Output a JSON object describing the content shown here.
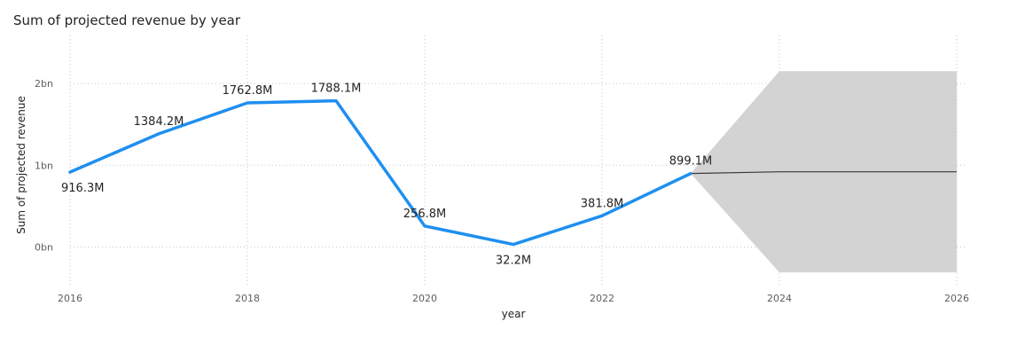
{
  "chart_data": {
    "type": "line",
    "title": "Sum of projected revenue by year",
    "xlabel": "year",
    "ylabel": "Sum of projected revenue",
    "x": [
      2016,
      2017,
      2018,
      2019,
      2020,
      2021,
      2022,
      2023
    ],
    "series": [
      {
        "values": [
          916.3,
          1384.2,
          1762.8,
          1788.1,
          256.8,
          32.2,
          381.8,
          899.1
        ],
        "data_labels": [
          "916.3M",
          "1384.2M",
          "1762.8M",
          "1788.1M",
          "256.8M",
          "32.2M",
          "381.8M",
          "899.1M"
        ],
        "color": "#1F8FEF"
      }
    ],
    "forecast": {
      "x": [
        2023,
        2024,
        2026
      ],
      "values": [
        899.1,
        920,
        920
      ],
      "upper": [
        899.1,
        2150,
        2150
      ],
      "lower": [
        899.1,
        -310,
        -310
      ],
      "line_color": "#3b3a39",
      "band_color": "#d3d3d3"
    },
    "x_ticks": [
      "2016",
      "2018",
      "2020",
      "2022",
      "2024",
      "2026"
    ],
    "x_tick_values": [
      2016,
      2018,
      2020,
      2022,
      2024,
      2026
    ],
    "y_ticks": [
      "0bn",
      "1bn",
      "2bn"
    ],
    "y_tick_values": [
      0,
      1000,
      2000
    ],
    "xlim": [
      2016,
      2026
    ],
    "ylim": [
      -450,
      2500
    ],
    "grid": true
  }
}
